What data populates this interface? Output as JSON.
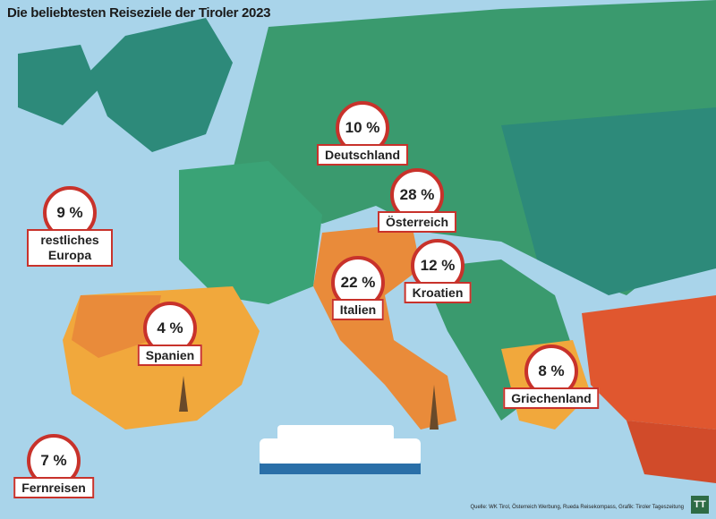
{
  "chart_data": {
    "type": "map",
    "title": "Die beliebtesten Reiseziele der Tiroler 2023",
    "categories": [
      "Deutschland",
      "Österreich",
      "Italien",
      "Kroatien",
      "restliches Europa",
      "Spanien",
      "Griechenland",
      "Fernreisen"
    ],
    "values": [
      10,
      28,
      22,
      12,
      9,
      4,
      8,
      7
    ],
    "value_labels": [
      "10 %",
      "28 %",
      "22 %",
      "12 %",
      "9 %",
      "4 %",
      "8 %",
      "7 %"
    ],
    "color": "#c8322b",
    "source": "Quelle: WK Tirol, Österreich Werbung, Rueda Reisekompass, Grafik: Tiroler Tageszeitung",
    "logo": "TT"
  }
}
